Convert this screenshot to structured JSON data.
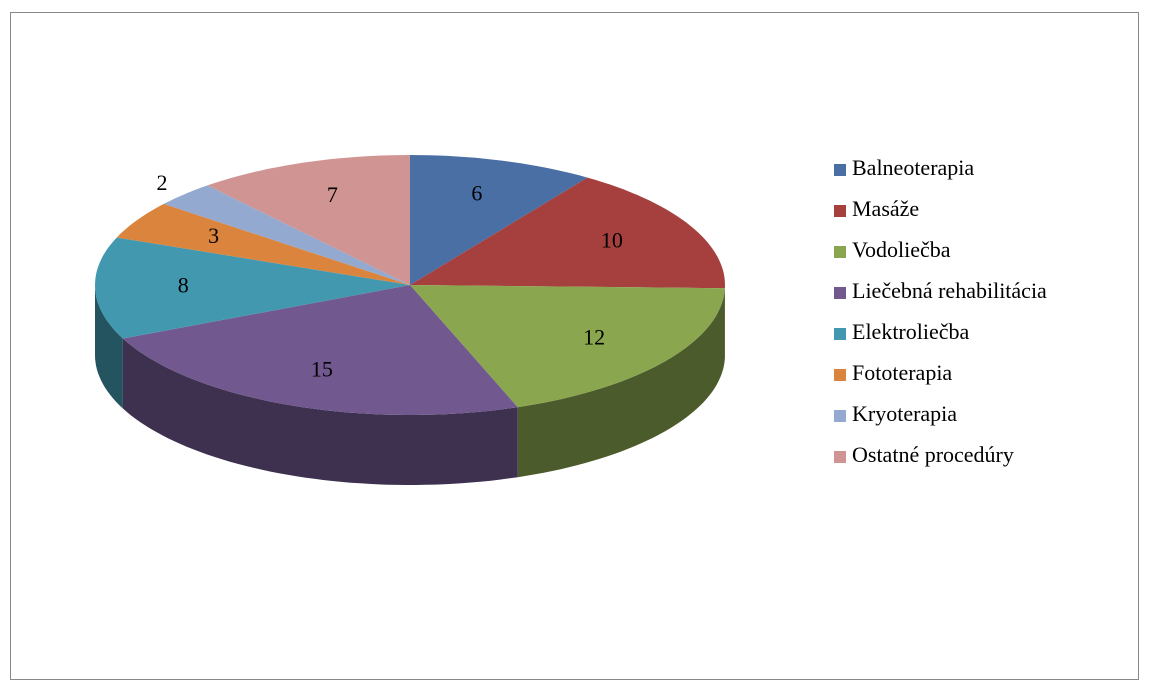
{
  "chart_data": {
    "type": "pie3d",
    "categories": [
      "Balneoterapia",
      "Masáže",
      "Vodoliečba",
      "Liečebná rehabilitácia",
      "Elektroliečba",
      "Fototerapia",
      "Kryoterapia",
      "Ostatné procedúry"
    ],
    "values": [
      6,
      10,
      12,
      15,
      8,
      3,
      2,
      7
    ],
    "colors": [
      "#4a6fa5",
      "#a5403e",
      "#8aa64f",
      "#71588f",
      "#4198af",
      "#db843d",
      "#93a9cf",
      "#d09493"
    ],
    "legend": "right"
  }
}
